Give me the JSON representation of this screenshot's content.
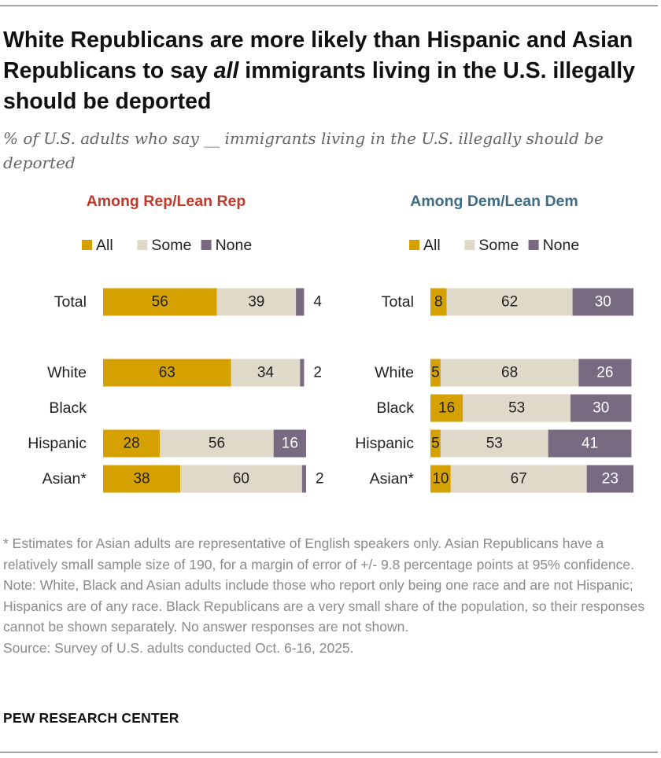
{
  "title_parts": [
    "White Republicans are more likely than Hispanic and Asian Republicans to say ",
    "all",
    " immigrants living in the U.S. illegally should be deported"
  ],
  "subtitle": "% of U.S. adults who say __ immigrants living in the U.S. illegally should be deported",
  "chart_data": {
    "type": "bar",
    "orientation": "horizontal",
    "stacked": true,
    "xlim": [
      0,
      100
    ],
    "grid": false,
    "legend_placement": "top",
    "colors": {
      "All": "#d4a100",
      "Some": "#dfd9c9",
      "None": "#786a80"
    },
    "panels": [
      {
        "title": "Among Rep/Lean Rep",
        "title_color": "#c0392b",
        "categories": [
          "Total",
          "White",
          "Black",
          "Hispanic",
          "Asian*"
        ],
        "series": [
          {
            "name": "All",
            "values": [
              56,
              63,
              null,
              28,
              38
            ]
          },
          {
            "name": "Some",
            "values": [
              39,
              34,
              null,
              56,
              60
            ]
          },
          {
            "name": "None",
            "values": [
              4,
              2,
              null,
              16,
              2
            ]
          }
        ]
      },
      {
        "title": "Among Dem/Lean Dem",
        "title_color": "#3e6b85",
        "categories": [
          "Total",
          "White",
          "Black",
          "Hispanic",
          "Asian*"
        ],
        "series": [
          {
            "name": "All",
            "values": [
              8,
              5,
              16,
              5,
              10
            ]
          },
          {
            "name": "Some",
            "values": [
              62,
              68,
              53,
              53,
              67
            ]
          },
          {
            "name": "None",
            "values": [
              30,
              26,
              30,
              41,
              23
            ]
          }
        ]
      }
    ]
  },
  "notes": [
    "* Estimates for Asian adults are representative of English speakers only. Asian Republicans have a relatively small sample size of 190, for a margin of error of +/- 9.8 percentage points at 95% confidence.",
    "Note: White, Black and Asian adults include those who report only being one race and are not Hispanic; Hispanics are of any race. Black Republicans are a very small share of the population, so their responses cannot be shown separately. No answer responses are not shown.",
    "Source: Survey of U.S. adults conducted Oct. 6-16, 2025."
  ],
  "brand": "PEW RESEARCH CENTER"
}
